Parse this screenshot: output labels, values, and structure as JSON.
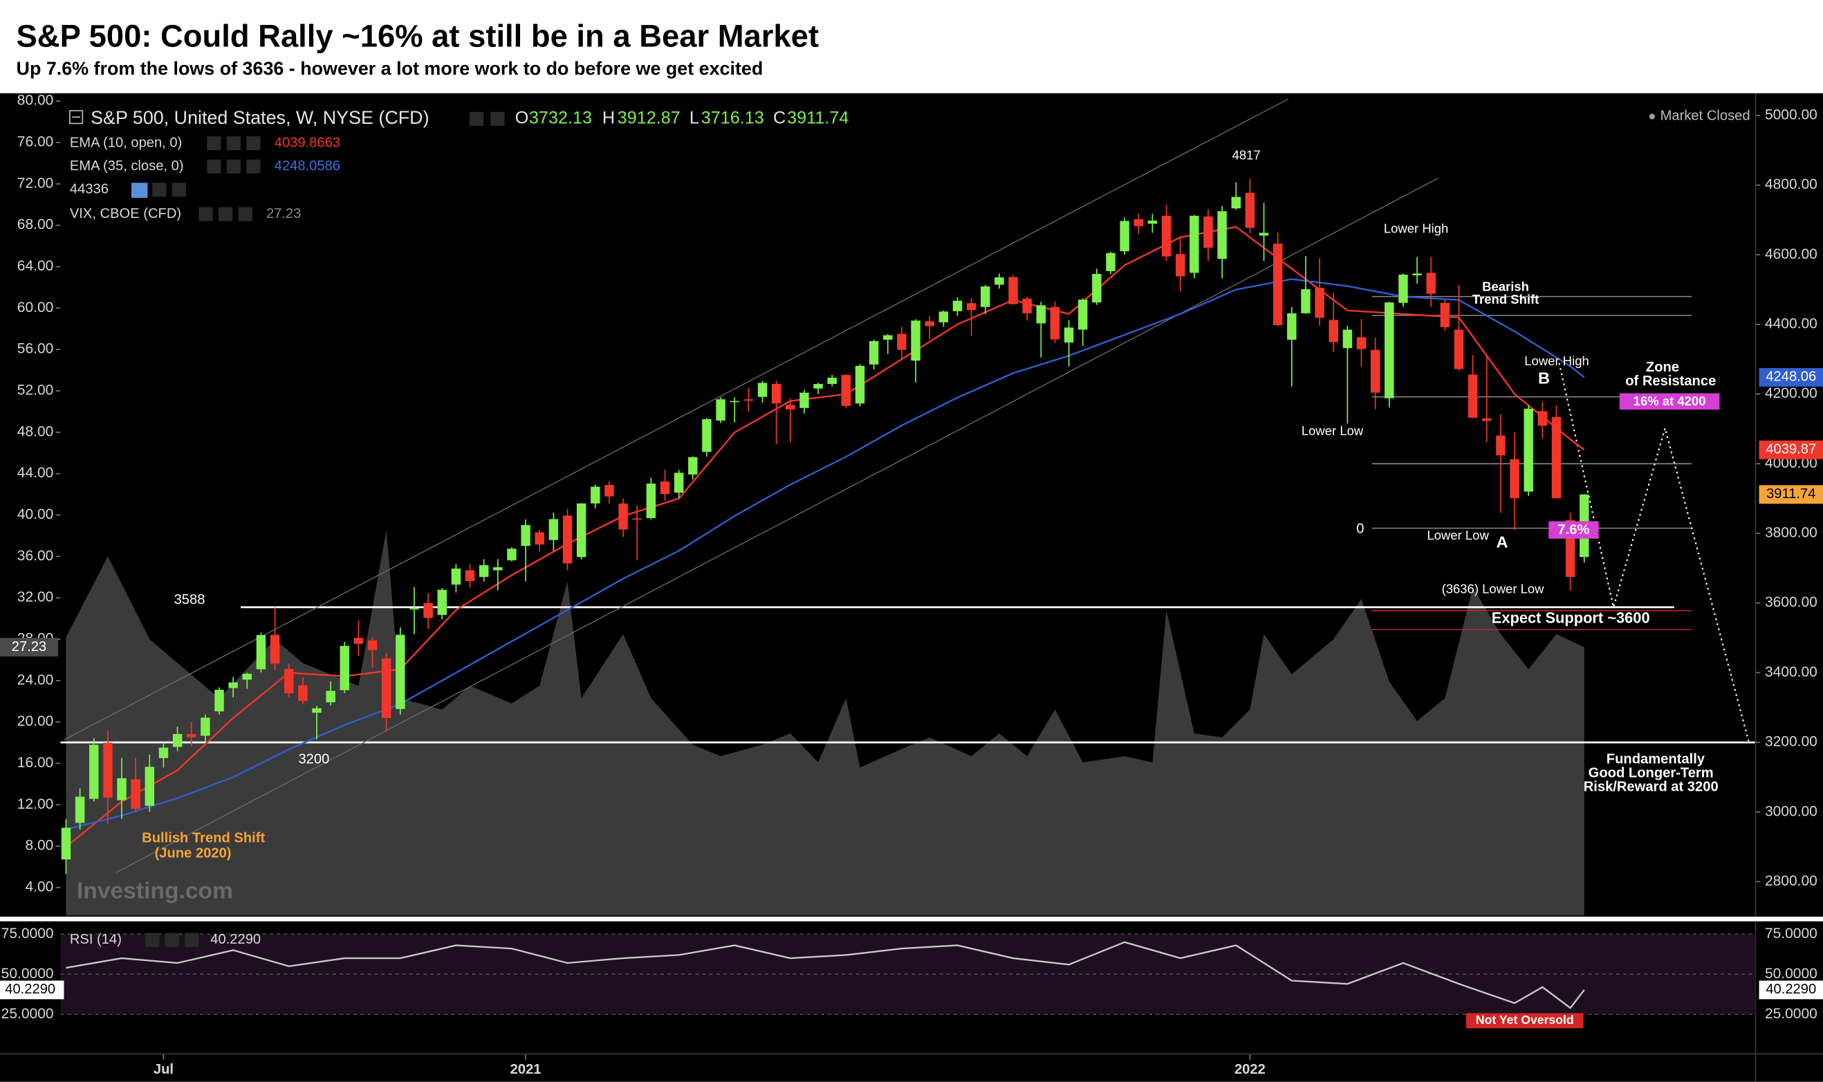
{
  "chart_data": {
    "type": "candlestick",
    "title": "S&P 500: Could Rally ~16% at still be in a Bear Market",
    "subtitle": "Up 7.6% from the lows of 3636 - however a lot more work to do before we get excited",
    "name": "S&P 500, United States, W, NYSE (CFD)",
    "ohlc_letters": [
      "O",
      "H",
      "L",
      "C"
    ],
    "x": [
      -33,
      -32,
      -31,
      -30,
      -29,
      -28,
      -27,
      -26,
      -25,
      -24,
      -23,
      -22,
      -21,
      -20,
      -19,
      -18,
      -17,
      -16,
      -15,
      -14,
      -13,
      -12,
      -11,
      -10,
      -9,
      -8,
      -7,
      -6,
      -5,
      -4,
      -3,
      -2,
      -1,
      0,
      1,
      2,
      3,
      4,
      5,
      6,
      7,
      8,
      9,
      10,
      11,
      12,
      13,
      14,
      15,
      16,
      17,
      18,
      19,
      20,
      21,
      22,
      23,
      24,
      25,
      26,
      27,
      28,
      29,
      30,
      31,
      32,
      33,
      34,
      35,
      36,
      37,
      38,
      39,
      40,
      41,
      42,
      43,
      44,
      45,
      46,
      47,
      48,
      49,
      50,
      51,
      52,
      53,
      54,
      55,
      56,
      57,
      58,
      59,
      60,
      61,
      62,
      63,
      64,
      65,
      66,
      67,
      68,
      69,
      70,
      71,
      72,
      73,
      74,
      75,
      76
    ],
    "open": [
      2864,
      2969,
      3038,
      3199,
      3034,
      3094,
      3018,
      3155,
      3187,
      3224,
      3219,
      3289,
      3356,
      3380,
      3410,
      3509,
      3411,
      3364,
      3285,
      3315,
      3350,
      3500,
      3493,
      3441,
      3296,
      3583,
      3600,
      3566,
      3653,
      3694,
      3675,
      3694,
      3723,
      3764,
      3803,
      3781,
      3851,
      3732,
      3886,
      3939,
      3886,
      3843,
      3844,
      3949,
      3917,
      3969,
      4034,
      4124,
      4179,
      4185,
      4192,
      4229,
      4169,
      4160,
      4216,
      4229,
      4255,
      4173,
      4285,
      4356,
      4373,
      4296,
      4409,
      4406,
      4438,
      4461,
      4450,
      4514,
      4536,
      4474,
      4403,
      4450,
      4348,
      4385,
      4463,
      4553,
      4610,
      4702,
      4689,
      4712,
      4602,
      4548,
      4710,
      4588,
      4733,
      4778,
      4655,
      4632,
      4356,
      4432,
      4505,
      4413,
      4332,
      4363,
      4327,
      4188,
      4462,
      4541,
      4548,
      4462,
      4385,
      4256,
      4130,
      4081,
      4013,
      3920,
      4151,
      4134,
      3838,
      3732.13
    ],
    "high": [
      2980,
      3068,
      3212,
      3233,
      3155,
      3155,
      3165,
      3200,
      3245,
      3259,
      3280,
      3358,
      3388,
      3400,
      3515,
      3588,
      3426,
      3388,
      3305,
      3375,
      3489,
      3550,
      3502,
      3455,
      3530,
      3646,
      3628,
      3643,
      3712,
      3712,
      3726,
      3726,
      3760,
      3840,
      3810,
      3860,
      3870,
      3887,
      3940,
      3950,
      3900,
      3880,
      3960,
      3983,
      3982,
      4021,
      4131,
      4191,
      4191,
      4218,
      4238,
      4238,
      4187,
      4212,
      4233,
      4255,
      4257,
      4286,
      4356,
      4372,
      4393,
      4415,
      4424,
      4440,
      4478,
      4475,
      4513,
      4546,
      4542,
      4480,
      4465,
      4466,
      4412,
      4475,
      4560,
      4608,
      4707,
      4718,
      4718,
      4743,
      4652,
      4714,
      4730,
      4740,
      4808,
      4818,
      4749,
      4664,
      4450,
      4596,
      4590,
      4490,
      4396,
      4416,
      4362,
      4465,
      4546,
      4594,
      4594,
      4471,
      4513,
      4312,
      4307,
      4142,
      4091,
      4168,
      4178,
      4168,
      3859,
      3912.87
    ],
    "low": [
      2822,
      2950,
      3030,
      2966,
      2980,
      2999,
      3000,
      3128,
      3175,
      3189,
      3200,
      3280,
      3329,
      3354,
      3401,
      3407,
      3330,
      3310,
      3209,
      3306,
      3342,
      3448,
      3415,
      3233,
      3280,
      3511,
      3526,
      3553,
      3630,
      3645,
      3662,
      3636,
      3720,
      3662,
      3747,
      3749,
      3694,
      3725,
      3872,
      3885,
      3790,
      3723,
      3840,
      3895,
      3901,
      3955,
      4020,
      4117,
      4118,
      4150,
      4175,
      4056,
      4062,
      4144,
      4200,
      4222,
      4160,
      4164,
      4271,
      4315,
      4298,
      4233,
      4357,
      4393,
      4424,
      4367,
      4430,
      4503,
      4457,
      4411,
      4305,
      4347,
      4279,
      4339,
      4456,
      4544,
      4600,
      4660,
      4663,
      4582,
      4495,
      4533,
      4583,
      4532,
      4729,
      4662,
      4582,
      4395,
      4222,
      4430,
      4397,
      4321,
      4115,
      4279,
      4157,
      4162,
      4451,
      4517,
      4450,
      4381,
      4267,
      4131,
      4062,
      3859,
      3810,
      3908,
      4073,
      3900,
      3636,
      3716.13
    ],
    "close": [
      2955,
      3044,
      3193,
      3041,
      3097,
      3009,
      3130,
      3185,
      3224,
      3215,
      3271,
      3351,
      3372,
      3397,
      3508,
      3426,
      3341,
      3319,
      3298,
      3348,
      3477,
      3483,
      3465,
      3270,
      3509,
      3585,
      3557,
      3638,
      3699,
      3663,
      3709,
      3703,
      3756,
      3824,
      3768,
      3841,
      3714,
      3886,
      3934,
      3906,
      3811,
      3842,
      3943,
      3913,
      3974,
      4019,
      4128,
      4185,
      4180,
      4181,
      4232,
      4173,
      4156,
      4204,
      4229,
      4247,
      4166,
      4281,
      4352,
      4369,
      4327,
      4411,
      4395,
      4437,
      4468,
      4441,
      4509,
      4535,
      4458,
      4432,
      4455,
      4357,
      4391,
      4471,
      4545,
      4605,
      4697,
      4682,
      4698,
      4595,
      4538,
      4712,
      4620,
      4725,
      4766,
      4677,
      4663,
      4398,
      4432,
      4501,
      4419,
      4349,
      4385,
      4329,
      4204,
      4463,
      4543,
      4546,
      4488,
      4392,
      4272,
      4132,
      4123,
      4024,
      3901,
      4158,
      4109,
      3901,
      3675,
      3911.74
    ],
    "up_color": "#7ef04f",
    "down_color": "#f2362b",
    "close_badge_color": "#f5a33b",
    "xlim": [
      -33.4,
      88.3
    ],
    "xticks": [
      {
        "value": -26,
        "label": "Jul"
      },
      {
        "value": 0,
        "label": "2021"
      },
      {
        "value": 52,
        "label": "2022"
      }
    ],
    "ylim": [
      2703,
      5047
    ],
    "yticks": [
      {
        "value": 5000,
        "label": "5000.00"
      },
      {
        "value": 4800,
        "label": "4800.00"
      },
      {
        "value": 4600,
        "label": "4600.00"
      },
      {
        "value": 4400,
        "label": "4400.00"
      },
      {
        "value": 4200,
        "label": "4200.00"
      },
      {
        "value": 4000,
        "label": "4000.00"
      },
      {
        "value": 3800,
        "label": "3800.00"
      },
      {
        "value": 3600,
        "label": "3600.00"
      },
      {
        "value": 3400,
        "label": "3400.00"
      },
      {
        "value": 3200,
        "label": "3200.00"
      },
      {
        "value": 3000,
        "label": "3000.00"
      },
      {
        "value": 2800,
        "label": "2800.00"
      }
    ],
    "overlays": [
      {
        "name": "EMA (10, open, 0)",
        "color": "#f2362b",
        "x": [
          -33,
          -29,
          -25,
          -21,
          -17,
          -13,
          -9,
          -5,
          -1,
          3,
          7,
          11,
          15,
          19,
          23,
          27,
          31,
          35,
          39,
          43,
          47,
          51,
          55,
          59,
          63,
          67,
          71,
          75,
          76
        ],
        "values": [
          2900,
          3030,
          3120,
          3270,
          3400,
          3390,
          3410,
          3580,
          3680,
          3770,
          3850,
          3900,
          4090,
          4180,
          4200,
          4300,
          4400,
          4470,
          4430,
          4570,
          4650,
          4680,
          4560,
          4440,
          4430,
          4420,
          4200,
          4070,
          4039.8663
        ],
        "last_value_label": "4039.87"
      },
      {
        "name": "EMA (35, close, 0)",
        "color": "#2f5fd0",
        "x": [
          -33,
          -29,
          -25,
          -21,
          -17,
          -13,
          -9,
          -5,
          -1,
          3,
          7,
          11,
          15,
          19,
          23,
          27,
          31,
          35,
          39,
          43,
          47,
          51,
          55,
          59,
          63,
          67,
          71,
          75,
          76
        ],
        "values": [
          2950,
          2990,
          3040,
          3100,
          3180,
          3250,
          3310,
          3400,
          3490,
          3580,
          3670,
          3750,
          3850,
          3940,
          4020,
          4110,
          4190,
          4260,
          4310,
          4370,
          4430,
          4500,
          4530,
          4510,
          4480,
          4470,
          4380,
          4280,
          4248.0586
        ],
        "last_value_label": "4248.06"
      }
    ],
    "study": "44336",
    "vix": {
      "name": "VIX, CBOE (CFD)",
      "color": "#3b3b3b",
      "badge_color": "#4a4a4a",
      "x": [
        -33,
        -30,
        -27,
        -25,
        -22,
        -18,
        -16,
        -12,
        -10,
        -9,
        -6,
        -4,
        -1,
        1,
        3,
        4,
        7,
        9,
        12,
        14,
        17,
        19,
        21,
        23,
        24,
        27,
        29,
        32,
        34,
        36,
        38,
        40,
        43,
        45,
        46,
        48,
        50,
        52,
        53,
        55,
        58,
        60,
        62,
        64,
        66,
        68,
        70,
        72,
        74,
        76
      ],
      "values": [
        28.2,
        36,
        28,
        25.7,
        22.3,
        28,
        25.7,
        23.5,
        38.6,
        22.3,
        21.2,
        23.5,
        21.8,
        23.5,
        33.6,
        22.3,
        28.5,
        22.3,
        17.8,
        16.7,
        17.8,
        18.9,
        16.1,
        22.3,
        15.6,
        17.4,
        18.5,
        16.7,
        18.9,
        16.7,
        21.2,
        16.1,
        16.7,
        16.1,
        30.8,
        18.9,
        18.5,
        21.2,
        28.5,
        24.6,
        28,
        31.9,
        23.9,
        20.1,
        22.3,
        33,
        28.5,
        25.1,
        28.5,
        27.23
      ],
      "ylim": [
        1.3,
        80.2
      ],
      "yticks": [
        {
          "value": 80,
          "label": "80.00"
        },
        {
          "value": 76,
          "label": "76.00"
        },
        {
          "value": 72,
          "label": "72.00"
        },
        {
          "value": 68,
          "label": "68.00"
        },
        {
          "value": 64,
          "label": "64.00"
        },
        {
          "value": 60,
          "label": "60.00"
        },
        {
          "value": 56,
          "label": "56.00"
        },
        {
          "value": 52,
          "label": "52.00"
        },
        {
          "value": 48,
          "label": "48.00"
        },
        {
          "value": 44,
          "label": "44.00"
        },
        {
          "value": 40,
          "label": "40.00"
        },
        {
          "value": 36,
          "label": "36.00"
        },
        {
          "value": 32,
          "label": "32.00"
        },
        {
          "value": 28,
          "label": "28.00"
        },
        {
          "value": 24,
          "label": "24.00"
        },
        {
          "value": 20,
          "label": "20.00"
        },
        {
          "value": 16,
          "label": "16.00"
        },
        {
          "value": 12,
          "label": "12.00"
        },
        {
          "value": 8,
          "label": "8.00"
        },
        {
          "value": 4,
          "label": "4.00"
        }
      ]
    },
    "rsi": {
      "name": "RSI (14)",
      "color": "#c8c8c8",
      "band_color": "#1d0f20",
      "x": [
        -33,
        -29,
        -25,
        -21,
        -17,
        -13,
        -9,
        -5,
        -1,
        3,
        7,
        11,
        15,
        19,
        23,
        27,
        31,
        35,
        39,
        43,
        47,
        51,
        55,
        59,
        63,
        67,
        71,
        73,
        75,
        76
      ],
      "values": [
        54,
        60,
        57,
        65,
        55,
        60,
        60,
        68,
        66,
        57,
        60,
        62,
        68,
        60,
        62,
        66,
        68,
        60,
        56,
        70,
        60,
        68,
        46,
        44,
        57,
        44,
        32,
        42,
        29,
        40.229
      ],
      "last_value_label": "40.2290",
      "ylim": [
        1.1,
        80.8
      ],
      "yticks": [
        {
          "value": 75,
          "label": "75.0000"
        },
        {
          "value": 50,
          "label": "50.0000"
        },
        {
          "value": 25,
          "label": "25.0000"
        }
      ]
    },
    "levels": [
      {
        "value": 3588,
        "color": "#ffffff"
      },
      {
        "value": 3200,
        "color": "#ffffff"
      },
      {
        "value": 4480,
        "color": "#8a8a8a"
      },
      {
        "value": 4426,
        "color": "#8a8a8a"
      },
      {
        "value": 4192,
        "color": "#8a8a8a"
      },
      {
        "value": 4000,
        "color": "#8a8a8a"
      },
      {
        "value": 3815,
        "color": "#8a8a8a"
      },
      {
        "value": 3578,
        "color": "#c0262b"
      },
      {
        "value": 3524,
        "color": "#c0262b"
      }
    ],
    "projection": {
      "x": [
        74.2,
        78.1,
        81.8,
        87.8
      ],
      "values": [
        4289,
        3588,
        4102,
        3204
      ]
    },
    "annotations": [
      4817,
      "Lower High",
      "Bearish",
      "Trend Shift",
      "Lower High",
      "B",
      "Zone",
      "of Resistance",
      "16% at 4200",
      "Lower Low",
      0,
      "Lower Low",
      "A",
      "7.6%",
      "(3636) Lower Low",
      "Expect Support ~3600",
      "Fundamentally",
      "Good Longer-Term",
      "Risk/Reward at 3200",
      3588,
      3200,
      "Bullish Trend Shift",
      "(June 2020)",
      "Not Yet Oversold"
    ],
    "status": "Market Closed",
    "watermark": "Investing.com"
  }
}
